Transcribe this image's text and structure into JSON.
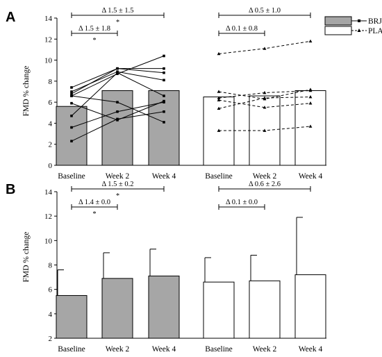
{
  "chart_data": [
    {
      "panel": "A",
      "type": "bar",
      "ylabel": "FMD % change",
      "ylim": [
        0,
        14
      ],
      "yticks": [
        "0",
        "2",
        "4",
        "6",
        "8",
        "10",
        "12",
        "14"
      ],
      "categories": [
        "Baseline",
        "Week 2",
        "Week 4"
      ],
      "grid": false,
      "legend_position": "top-right",
      "legend": [
        {
          "name": "BRJ",
          "style": "solid line with square markers",
          "fill": "#a6a6a6"
        },
        {
          "name": "PLA",
          "style": "dashed line with triangle markers",
          "fill": "#ffffff"
        }
      ],
      "series": [
        {
          "name": "BRJ",
          "fill": "#a6a6a6",
          "values": [
            5.6,
            7.1,
            7.1
          ]
        },
        {
          "name": "PLA",
          "fill": "#ffffff",
          "values": [
            6.5,
            6.6,
            7.1
          ]
        }
      ],
      "individual_lines": {
        "BRJ": [
          [
            7.4,
            9.2,
            9.2
          ],
          [
            7.0,
            8.9,
            8.1
          ],
          [
            6.8,
            9.2,
            8.8
          ],
          [
            6.6,
            8.7,
            10.4
          ],
          [
            5.9,
            4.3,
            6.1
          ],
          [
            4.7,
            8.8,
            6.6
          ],
          [
            3.6,
            5.1,
            6.0
          ],
          [
            2.3,
            4.4,
            5.1
          ],
          [
            6.6,
            6.0,
            4.1
          ]
        ],
        "PLA": [
          [
            10.6,
            11.1,
            11.8
          ],
          [
            7.0,
            6.3,
            7.2
          ],
          [
            6.4,
            6.9,
            7.1
          ],
          [
            6.2,
            5.5,
            5.9
          ],
          [
            5.4,
            6.4,
            6.5
          ],
          [
            3.3,
            3.3,
            3.7
          ]
        ]
      },
      "annotations": [
        {
          "text": "Δ 1.5 ± 1.5",
          "group": "BRJ",
          "from": "Baseline",
          "to": "Week 4",
          "significance": "*"
        },
        {
          "text": "Δ 1.5 ± 1.8",
          "group": "BRJ",
          "from": "Baseline",
          "to": "Week 2",
          "significance": "*"
        },
        {
          "text": "Δ 0.5 ± 1.0",
          "group": "PLA",
          "from": "Baseline",
          "to": "Week 4",
          "significance": ""
        },
        {
          "text": "Δ 0.1 ± 0.8",
          "group": "PLA",
          "from": "Baseline",
          "to": "Week 2",
          "significance": ""
        }
      ]
    },
    {
      "panel": "B",
      "type": "bar",
      "ylabel": "FMD % change",
      "ylim": [
        2,
        14
      ],
      "yticks": [
        "2",
        "4",
        "6",
        "8",
        "10",
        "12",
        "14"
      ],
      "categories": [
        "Baseline",
        "Week 2",
        "Week 4"
      ],
      "grid": false,
      "series": [
        {
          "name": "BRJ",
          "fill": "#a6a6a6",
          "values": [
            5.5,
            6.9,
            7.1
          ],
          "error_upper": [
            7.6,
            9.0,
            9.3
          ]
        },
        {
          "name": "PLA",
          "fill": "#ffffff",
          "values": [
            6.6,
            6.7,
            7.2
          ],
          "error_upper": [
            8.6,
            8.8,
            11.9
          ]
        }
      ],
      "annotations": [
        {
          "text": "Δ 1.5 ± 0.2",
          "group": "BRJ",
          "from": "Baseline",
          "to": "Week 4",
          "significance": "*"
        },
        {
          "text": "Δ 1.4 ± 0.0",
          "group": "BRJ",
          "from": "Baseline",
          "to": "Week 2",
          "significance": "*"
        },
        {
          "text": "Δ 0.6 ± 2.6",
          "group": "PLA",
          "from": "Baseline",
          "to": "Week 4",
          "significance": ""
        },
        {
          "text": "Δ 0.1 ± 0.0",
          "group": "PLA",
          "from": "Baseline",
          "to": "Week 2",
          "significance": ""
        }
      ]
    }
  ]
}
